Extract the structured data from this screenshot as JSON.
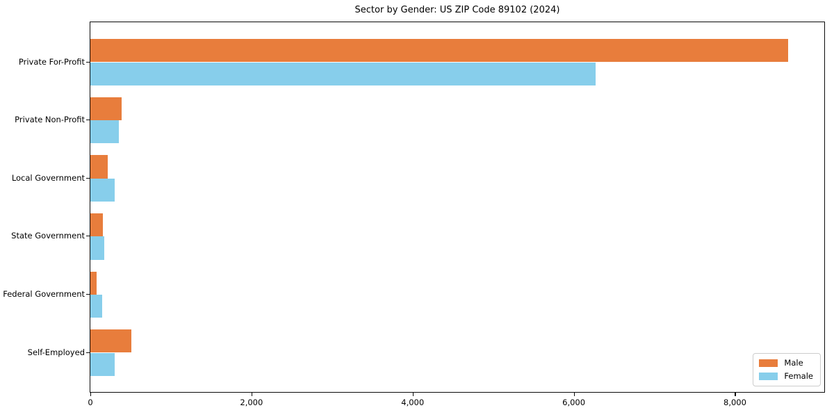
{
  "chart_data": {
    "type": "bar",
    "orientation": "horizontal",
    "title": "Sector by Gender: US ZIP Code 89102 (2024)",
    "categories": [
      "Private For-Profit",
      "Private Non-Profit",
      "Local Government",
      "State Government",
      "Federal Government",
      "Self-Employed"
    ],
    "series": [
      {
        "name": "Male",
        "color": "#E87D3C",
        "values": [
          8660,
          390,
          215,
          155,
          75,
          510
        ]
      },
      {
        "name": "Female",
        "color": "#87CEEB",
        "values": [
          6270,
          355,
          305,
          170,
          145,
          300
        ]
      }
    ],
    "xlabel": "",
    "ylabel": "",
    "xlim": [
      0,
      9100
    ],
    "x_ticks": [
      0,
      2000,
      4000,
      6000,
      8000
    ],
    "x_tick_labels": [
      "0",
      "2,000",
      "4,000",
      "6,000",
      "8,000"
    ],
    "grid": false,
    "legend_position": "lower right"
  }
}
